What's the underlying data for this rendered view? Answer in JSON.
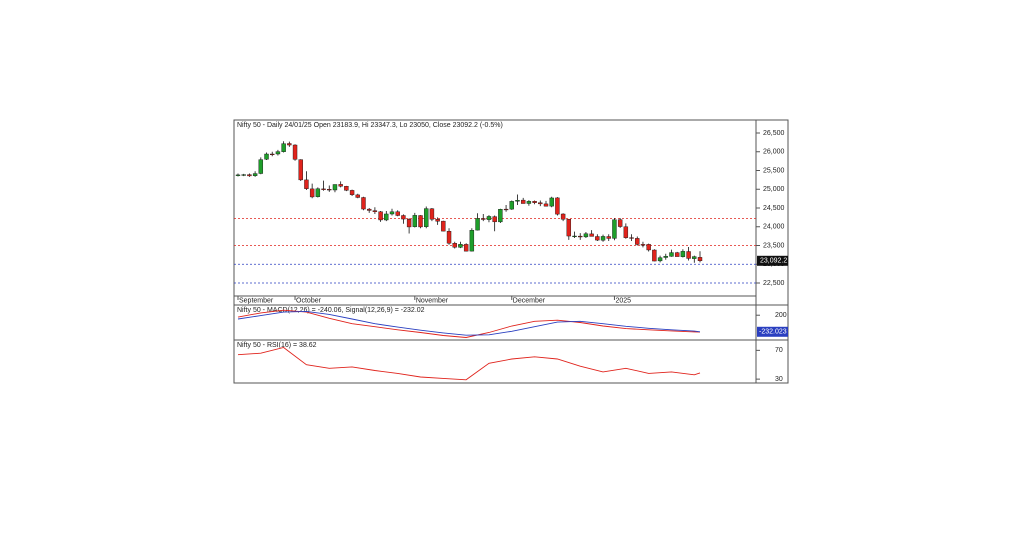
{
  "chart_data": [
    {
      "type": "candlestick",
      "title": "Nifty 50 - Daily 24/01/25 Open 23183.9, Hi 23347.3, Lo 23050, Close 23092.2 (-0.5%)",
      "up_color": "#1e9e2a",
      "down_color": "#e0231c",
      "ylim": [
        22180,
        26820
      ],
      "yticks": [
        {
          "value": 22500,
          "label": "22,500"
        },
        {
          "value": 23000,
          "label": "23,000"
        },
        {
          "value": 23500,
          "label": "23,500"
        },
        {
          "value": 24000,
          "label": "24,000"
        },
        {
          "value": 24500,
          "label": "24,500"
        },
        {
          "value": 25000,
          "label": "25,000"
        },
        {
          "value": 25500,
          "label": "25,500"
        },
        {
          "value": 26000,
          "label": "26,000"
        },
        {
          "value": 26500,
          "label": "26,500"
        }
      ],
      "month_ticks": [
        {
          "value": 0,
          "label": "September"
        },
        {
          "value": 10,
          "label": "October"
        },
        {
          "value": 31,
          "label": "November"
        },
        {
          "value": 48,
          "label": "December"
        },
        {
          "value": 66,
          "label": "2025"
        }
      ],
      "hlines": [
        {
          "value": 24220,
          "color": "#e0231c"
        },
        {
          "value": 23500,
          "color": "#e0231c"
        },
        {
          "value": 23000,
          "color": "#2a3fc0"
        },
        {
          "value": 22500,
          "color": "#2a3fc0"
        }
      ],
      "last_price": {
        "value": 23092.2,
        "label": "23,092.2"
      },
      "ohlc": [
        [
          25380,
          25420,
          25340,
          25383
        ],
        [
          25380,
          25410,
          25350,
          25390
        ],
        [
          25390,
          25420,
          25330,
          25356
        ],
        [
          25360,
          25480,
          25330,
          25418
        ],
        [
          25420,
          25850,
          25400,
          25790
        ],
        [
          25800,
          25980,
          25780,
          25940
        ],
        [
          25940,
          26000,
          25880,
          25939
        ],
        [
          25940,
          26050,
          25900,
          26004
        ],
        [
          26000,
          26280,
          25980,
          26216
        ],
        [
          26220,
          26270,
          26130,
          26179
        ],
        [
          26180,
          26200,
          25760,
          25797
        ],
        [
          25790,
          25800,
          25220,
          25250
        ],
        [
          25250,
          25480,
          24980,
          25015
        ],
        [
          25010,
          25150,
          24760,
          24795
        ],
        [
          24800,
          25050,
          24780,
          25013
        ],
        [
          25010,
          25230,
          24960,
          24998
        ],
        [
          25000,
          25100,
          24930,
          24982
        ],
        [
          24980,
          25130,
          24920,
          25127
        ],
        [
          25130,
          25210,
          25050,
          25080
        ],
        [
          25080,
          25090,
          24950,
          24971
        ],
        [
          24970,
          24990,
          24820,
          24854
        ],
        [
          24850,
          24880,
          24760,
          24781
        ],
        [
          24780,
          24800,
          24440,
          24472
        ],
        [
          24470,
          24500,
          24370,
          24435
        ],
        [
          24430,
          24520,
          24340,
          24399
        ],
        [
          24400,
          24420,
          24130,
          24181
        ],
        [
          24180,
          24420,
          24150,
          24341
        ],
        [
          24340,
          24480,
          24300,
          24399
        ],
        [
          24400,
          24440,
          24280,
          24300
        ],
        [
          24300,
          24330,
          24080,
          24205
        ],
        [
          24200,
          24230,
          23820,
          23995
        ],
        [
          24000,
          24370,
          23980,
          24304
        ],
        [
          24300,
          24310,
          23960,
          23995
        ],
        [
          24000,
          24540,
          23960,
          24484
        ],
        [
          24480,
          24500,
          24150,
          24199
        ],
        [
          24200,
          24250,
          24050,
          24148
        ],
        [
          24150,
          24160,
          23880,
          23883
        ],
        [
          23880,
          23960,
          23520,
          23559
        ],
        [
          23560,
          23600,
          23420,
          23453
        ],
        [
          23450,
          23600,
          23430,
          23532
        ],
        [
          23530,
          23560,
          23340,
          23349
        ],
        [
          23350,
          23960,
          23340,
          23907
        ],
        [
          23910,
          24360,
          23900,
          24221
        ],
        [
          24220,
          24340,
          24150,
          24194
        ],
        [
          24190,
          24310,
          24120,
          24275
        ],
        [
          24270,
          24300,
          23880,
          24131
        ],
        [
          24130,
          24480,
          24100,
          24467
        ],
        [
          24470,
          24580,
          24400,
          24468
        ],
        [
          24470,
          24700,
          24450,
          24677
        ],
        [
          24680,
          24860,
          24580,
          24708
        ],
        [
          24710,
          24770,
          24620,
          24619
        ],
        [
          24620,
          24710,
          24560,
          24678
        ],
        [
          24680,
          24700,
          24600,
          24641
        ],
        [
          24640,
          24700,
          24550,
          24610
        ],
        [
          24610,
          24690,
          24540,
          24548
        ],
        [
          24550,
          24800,
          24520,
          24768
        ],
        [
          24770,
          24790,
          24300,
          24336
        ],
        [
          24340,
          24360,
          24150,
          24199
        ],
        [
          24200,
          24210,
          23650,
          23752
        ],
        [
          23750,
          23870,
          23700,
          23753
        ],
        [
          23750,
          23830,
          23650,
          23727
        ],
        [
          23730,
          23860,
          23700,
          23813
        ],
        [
          23810,
          23910,
          23780,
          23742
        ],
        [
          23740,
          23800,
          23620,
          23644
        ],
        [
          23640,
          23790,
          23600,
          23742
        ],
        [
          23740,
          23800,
          23620,
          23688
        ],
        [
          23690,
          24230,
          23640,
          24188
        ],
        [
          24190,
          24230,
          23970,
          24005
        ],
        [
          24000,
          24090,
          23680,
          23708
        ],
        [
          23710,
          23800,
          23620,
          23689
        ],
        [
          23690,
          23740,
          23500,
          23527
        ],
        [
          23530,
          23600,
          23450,
          23526
        ],
        [
          23530,
          23550,
          23340,
          23381
        ],
        [
          23380,
          23400,
          23080,
          23085
        ],
        [
          23090,
          23230,
          23050,
          23176
        ],
        [
          23180,
          23280,
          23120,
          23213
        ],
        [
          23210,
          23390,
          23200,
          23311
        ],
        [
          23310,
          23330,
          23220,
          23204
        ],
        [
          23200,
          23400,
          23180,
          23344
        ],
        [
          23340,
          23460,
          23100,
          23155
        ],
        [
          23150,
          23230,
          23040,
          23204
        ],
        [
          23184,
          23347,
          23050,
          23092
        ]
      ]
    },
    {
      "type": "line",
      "title": "Nifty 50 - MACD(12,26) = -240.06, Signal(12,26,9) = -232.02",
      "ylim": [
        -420,
        440
      ],
      "yticks": [
        200
      ],
      "x": [
        0,
        4,
        8,
        12,
        16,
        20,
        24,
        28,
        32,
        36,
        40,
        44,
        48,
        52,
        56,
        60,
        64,
        68,
        72,
        76,
        80,
        81
      ],
      "series": [
        {
          "name": "MACD",
          "color": "#e0231c",
          "values": [
            150,
            260,
            330,
            280,
            120,
            -20,
            -100,
            -180,
            -250,
            -330,
            -380,
            -250,
            -80,
            40,
            70,
            10,
            -80,
            -150,
            -180,
            -210,
            -235,
            -240.06
          ]
        },
        {
          "name": "Signal",
          "color": "#2a3fc0",
          "values": [
            100,
            190,
            280,
            300,
            220,
            100,
            -20,
            -110,
            -190,
            -260,
            -320,
            -310,
            -220,
            -100,
            20,
            40,
            -20,
            -90,
            -140,
            -180,
            -215,
            -232.023
          ],
          "last_label": "-232.023"
        }
      ]
    },
    {
      "type": "line",
      "title": "Nifty 50 - RSI(16) = 38.62",
      "ylim": [
        26,
        83
      ],
      "yticks": [
        30,
        70
      ],
      "x": [
        0,
        4,
        8,
        12,
        16,
        20,
        24,
        28,
        32,
        36,
        40,
        44,
        48,
        52,
        56,
        60,
        64,
        68,
        72,
        76,
        80,
        81
      ],
      "series": [
        {
          "name": "RSI",
          "color": "#e0231c",
          "values": [
            64,
            66,
            74,
            50,
            45,
            47,
            42,
            38,
            33,
            31,
            29,
            52,
            58,
            61,
            58,
            48,
            40,
            45,
            38,
            40,
            36,
            38.62
          ]
        }
      ]
    }
  ]
}
